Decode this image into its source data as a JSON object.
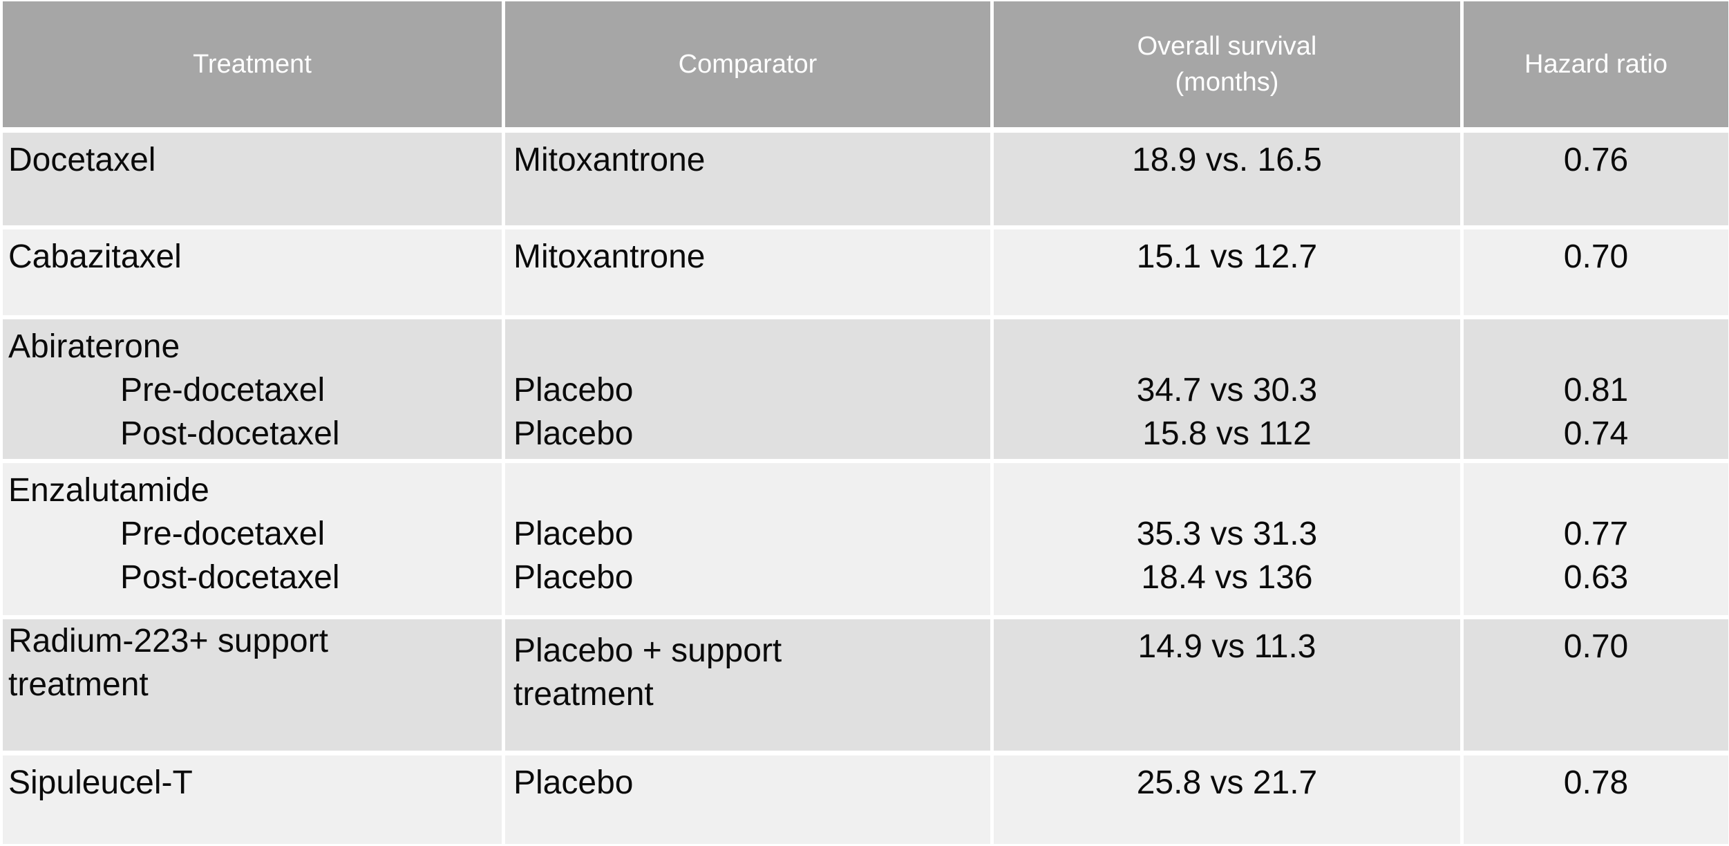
{
  "colors": {
    "header_bg": "#a6a6a6",
    "header_text": "#ffffff",
    "row_band_dark": "#e0e0e0",
    "row_band_light": "#f0f0f0",
    "body_text": "#0a0a0a",
    "separator": "#ffffff"
  },
  "header": {
    "treatment": "Treatment",
    "comparator": "Comparator",
    "survival_line1": "Overall survival",
    "survival_line2": "(months)",
    "hazard": "Hazard ratio"
  },
  "rows": [
    {
      "treatment": [
        "Docetaxel"
      ],
      "comparator": [
        "Mitoxantrone"
      ],
      "survival": [
        "18.9 vs. 16.5"
      ],
      "hazard": [
        "0.76"
      ]
    },
    {
      "treatment": [
        "Cabazitaxel"
      ],
      "comparator": [
        "Mitoxantrone"
      ],
      "survival": [
        "15.1 vs 12.7"
      ],
      "hazard": [
        "0.70"
      ]
    },
    {
      "treatment": [
        "Abiraterone",
        "Pre-docetaxel",
        "Post-docetaxel"
      ],
      "comparator": [
        "Placebo",
        "Placebo"
      ],
      "survival": [
        "34.7 vs 30.3",
        "15.8 vs 112"
      ],
      "hazard": [
        "0.81",
        "0.74"
      ]
    },
    {
      "treatment": [
        "Enzalutamide",
        "Pre-docetaxel",
        "Post-docetaxel"
      ],
      "comparator": [
        "Placebo",
        "Placebo"
      ],
      "survival": [
        "35.3 vs 31.3",
        "18.4 vs 136"
      ],
      "hazard": [
        "0.77",
        "0.63"
      ]
    },
    {
      "treatment": [
        "Radium-223+ support",
        "treatment"
      ],
      "comparator": [
        "Placebo + support",
        "treatment"
      ],
      "survival": [
        "14.9 vs 11.3"
      ],
      "hazard": [
        "0.70"
      ]
    },
    {
      "treatment": [
        "Sipuleucel-T"
      ],
      "comparator": [
        "Placebo"
      ],
      "survival": [
        "25.8 vs 21.7"
      ],
      "hazard": [
        "0.78"
      ]
    }
  ]
}
